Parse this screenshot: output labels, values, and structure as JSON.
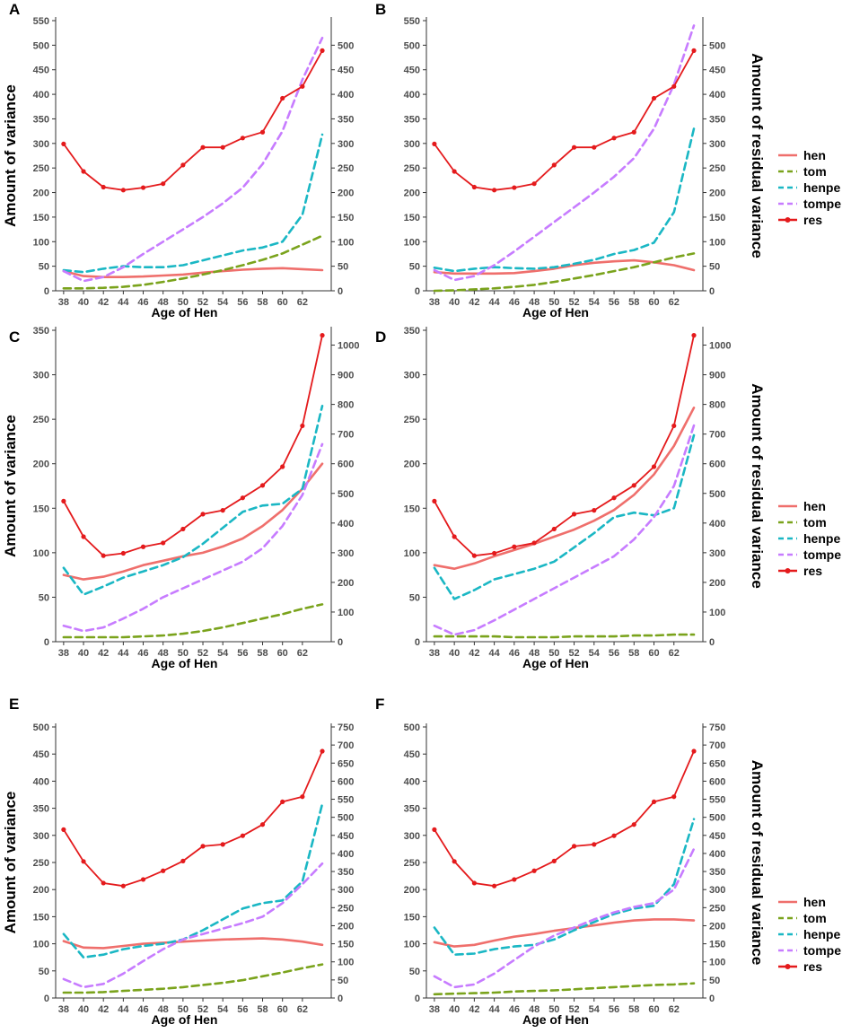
{
  "figure": {
    "xlabel": "Age of Hen",
    "ylabel_left": "Amount of variance",
    "ylabel_right": "Amount of residual variance",
    "x_ticks": [
      38,
      40,
      42,
      44,
      46,
      48,
      50,
      52,
      54,
      56,
      58,
      60,
      62
    ]
  },
  "legend": {
    "entries": [
      {
        "name": "hen",
        "color": "#ef6f6c",
        "dash": "solid",
        "marker": false
      },
      {
        "name": "tom",
        "color": "#7aa31c",
        "dash": "dash",
        "marker": false
      },
      {
        "name": "henpe",
        "color": "#1ab7c4",
        "dash": "dash",
        "marker": false
      },
      {
        "name": "tompe",
        "color": "#c77cff",
        "dash": "dash",
        "marker": false
      },
      {
        "name": "res",
        "color": "#e41a1c",
        "dash": "solid",
        "marker": true
      }
    ]
  },
  "chart_data": [
    {
      "panel": "A",
      "type": "line",
      "title": "",
      "xlabel": "Age of Hen",
      "ylabel": "Amount of variance",
      "y2label": "",
      "xlim": [
        37.2,
        64.9
      ],
      "ylim": [
        0,
        550
      ],
      "y_ticks": [
        0,
        50,
        100,
        150,
        200,
        250,
        300,
        350,
        400,
        450,
        500,
        550
      ],
      "y2lim": [
        0,
        550
      ],
      "y2_ticks": [
        0,
        50,
        100,
        150,
        200,
        250,
        300,
        350,
        400,
        450,
        500
      ],
      "x": [
        38,
        40,
        42,
        44,
        46,
        48,
        50,
        52,
        54,
        56,
        58,
        60,
        62,
        64
      ],
      "series": [
        {
          "name": "hen",
          "axis": "left",
          "values": [
            40,
            30,
            28,
            28,
            29,
            31,
            33,
            37,
            40,
            43,
            45,
            46,
            44,
            42
          ]
        },
        {
          "name": "tom",
          "axis": "left",
          "values": [
            5,
            5,
            6,
            8,
            12,
            18,
            25,
            33,
            42,
            52,
            63,
            76,
            94,
            112
          ]
        },
        {
          "name": "henpe",
          "axis": "left",
          "values": [
            42,
            38,
            45,
            50,
            48,
            48,
            52,
            62,
            72,
            82,
            88,
            100,
            155,
            318
          ]
        },
        {
          "name": "tompe",
          "axis": "left",
          "values": [
            40,
            20,
            28,
            48,
            75,
            100,
            125,
            150,
            178,
            210,
            258,
            325,
            430,
            515
          ]
        },
        {
          "name": "res",
          "axis": "right",
          "values": [
            299,
            243,
            211,
            205,
            210,
            218,
            256,
            292,
            292,
            311,
            323,
            392,
            416,
            489
          ]
        }
      ]
    },
    {
      "panel": "B",
      "type": "line",
      "title": "",
      "xlabel": "Age of Hen",
      "ylabel": "",
      "y2label": "Amount of residual variance",
      "xlim": [
        37.2,
        64.9
      ],
      "ylim": [
        0,
        550
      ],
      "y_ticks": [
        0,
        50,
        100,
        150,
        200,
        250,
        300,
        350,
        400,
        450,
        500,
        550
      ],
      "y2lim": [
        0,
        550
      ],
      "y2_ticks": [
        0,
        50,
        100,
        150,
        200,
        250,
        300,
        350,
        400,
        450,
        500
      ],
      "x": [
        38,
        40,
        42,
        44,
        46,
        48,
        50,
        52,
        54,
        56,
        58,
        60,
        62,
        64
      ],
      "series": [
        {
          "name": "hen",
          "axis": "left",
          "values": [
            38,
            35,
            35,
            35,
            36,
            40,
            45,
            52,
            57,
            60,
            62,
            58,
            52,
            42
          ]
        },
        {
          "name": "tom",
          "axis": "left",
          "values": [
            0,
            1,
            3,
            5,
            8,
            12,
            18,
            25,
            32,
            40,
            48,
            58,
            68,
            76
          ]
        },
        {
          "name": "henpe",
          "axis": "left",
          "values": [
            47,
            40,
            45,
            48,
            46,
            45,
            48,
            55,
            63,
            75,
            83,
            98,
            160,
            330
          ]
        },
        {
          "name": "tompe",
          "axis": "left",
          "values": [
            42,
            22,
            30,
            52,
            80,
            110,
            140,
            170,
            200,
            232,
            270,
            330,
            420,
            540
          ]
        },
        {
          "name": "res",
          "axis": "right",
          "values": [
            299,
            243,
            211,
            205,
            210,
            218,
            256,
            292,
            292,
            311,
            323,
            392,
            416,
            489
          ]
        }
      ]
    },
    {
      "panel": "C",
      "type": "line",
      "title": "",
      "xlabel": "Age of Hen",
      "ylabel": "Amount of variance",
      "y2label": "",
      "xlim": [
        37.2,
        64.9
      ],
      "ylim": [
        0,
        350
      ],
      "y_ticks": [
        0,
        50,
        100,
        150,
        200,
        250,
        300,
        350
      ],
      "y2lim": [
        0,
        1050
      ],
      "y2_ticks": [
        0,
        100,
        200,
        300,
        400,
        500,
        600,
        700,
        800,
        900,
        1000
      ],
      "x": [
        38,
        40,
        42,
        44,
        46,
        48,
        50,
        52,
        54,
        56,
        58,
        60,
        62,
        64
      ],
      "series": [
        {
          "name": "hen",
          "axis": "left",
          "values": [
            75,
            70,
            73,
            79,
            86,
            91,
            96,
            100,
            107,
            116,
            130,
            148,
            172,
            200
          ]
        },
        {
          "name": "tom",
          "axis": "left",
          "values": [
            5,
            5,
            5,
            5,
            6,
            7,
            9,
            12,
            16,
            21,
            26,
            31,
            37,
            42
          ]
        },
        {
          "name": "henpe",
          "axis": "left",
          "values": [
            83,
            53,
            62,
            72,
            79,
            86,
            95,
            110,
            128,
            146,
            153,
            155,
            172,
            265
          ]
        },
        {
          "name": "tompe",
          "axis": "left",
          "values": [
            18,
            12,
            16,
            26,
            37,
            50,
            60,
            70,
            80,
            90,
            105,
            130,
            165,
            222
          ]
        },
        {
          "name": "res",
          "axis": "right",
          "values": [
            474,
            354,
            290,
            298,
            320,
            333,
            380,
            430,
            443,
            485,
            527,
            590,
            728,
            1033
          ]
        }
      ]
    },
    {
      "panel": "D",
      "type": "line",
      "title": "",
      "xlabel": "Age of Hen",
      "ylabel": "",
      "y2label": "Amount of residual variance",
      "xlim": [
        37.2,
        64.9
      ],
      "ylim": [
        0,
        350
      ],
      "y_ticks": [
        0,
        50,
        100,
        150,
        200,
        250,
        300,
        350
      ],
      "y2lim": [
        0,
        1050
      ],
      "y2_ticks": [
        0,
        100,
        200,
        300,
        400,
        500,
        600,
        700,
        800,
        900,
        1000
      ],
      "x": [
        38,
        40,
        42,
        44,
        46,
        48,
        50,
        52,
        54,
        56,
        58,
        60,
        62,
        64
      ],
      "series": [
        {
          "name": "hen",
          "axis": "left",
          "values": [
            86,
            82,
            88,
            96,
            103,
            110,
            118,
            126,
            136,
            148,
            165,
            188,
            220,
            263
          ]
        },
        {
          "name": "tom",
          "axis": "left",
          "values": [
            6,
            6,
            6,
            6,
            5,
            5,
            5,
            6,
            6,
            6,
            7,
            7,
            8,
            8
          ]
        },
        {
          "name": "henpe",
          "axis": "left",
          "values": [
            83,
            48,
            58,
            70,
            76,
            82,
            90,
            106,
            122,
            140,
            145,
            142,
            150,
            232
          ]
        },
        {
          "name": "tompe",
          "axis": "left",
          "values": [
            18,
            8,
            13,
            24,
            36,
            48,
            60,
            72,
            84,
            96,
            115,
            140,
            175,
            243
          ]
        },
        {
          "name": "res",
          "axis": "right",
          "values": [
            474,
            354,
            290,
            298,
            320,
            333,
            380,
            430,
            443,
            485,
            527,
            590,
            728,
            1033
          ]
        }
      ]
    },
    {
      "panel": "E",
      "type": "line",
      "title": "",
      "xlabel": "Age of Hen",
      "ylabel": "Amount of variance",
      "y2label": "",
      "xlim": [
        37.2,
        64.9
      ],
      "ylim": [
        0,
        500
      ],
      "y_ticks": [
        0,
        50,
        100,
        150,
        200,
        250,
        300,
        350,
        400,
        450,
        500
      ],
      "y2lim": [
        0,
        750
      ],
      "y2_ticks": [
        0,
        50,
        100,
        150,
        200,
        250,
        300,
        350,
        400,
        450,
        500,
        550,
        600,
        650,
        700,
        750
      ],
      "x": [
        38,
        40,
        42,
        44,
        46,
        48,
        50,
        52,
        54,
        56,
        58,
        60,
        62,
        64
      ],
      "series": [
        {
          "name": "hen",
          "axis": "left",
          "values": [
            105,
            93,
            92,
            96,
            100,
            102,
            104,
            106,
            108,
            109,
            110,
            108,
            104,
            98
          ]
        },
        {
          "name": "tom",
          "axis": "left",
          "values": [
            10,
            10,
            11,
            13,
            15,
            17,
            20,
            24,
            28,
            33,
            40,
            47,
            55,
            62
          ]
        },
        {
          "name": "henpe",
          "axis": "left",
          "values": [
            118,
            75,
            80,
            90,
            96,
            100,
            108,
            125,
            145,
            165,
            175,
            180,
            215,
            358
          ]
        },
        {
          "name": "tompe",
          "axis": "left",
          "values": [
            35,
            20,
            26,
            45,
            68,
            90,
            108,
            118,
            128,
            138,
            150,
            175,
            210,
            248
          ]
        },
        {
          "name": "res",
          "axis": "right",
          "values": [
            466,
            378,
            318,
            310,
            328,
            352,
            379,
            420,
            425,
            449,
            480,
            543,
            557,
            683
          ]
        }
      ]
    },
    {
      "panel": "F",
      "type": "line",
      "title": "",
      "xlabel": "Age of Hen",
      "ylabel": "",
      "y2label": "Amount of residual variance",
      "xlim": [
        37.2,
        64.9
      ],
      "ylim": [
        0,
        500
      ],
      "y_ticks": [
        0,
        50,
        100,
        150,
        200,
        250,
        300,
        350,
        400,
        450,
        500
      ],
      "y2lim": [
        0,
        750
      ],
      "y2_ticks": [
        0,
        50,
        100,
        150,
        200,
        250,
        300,
        350,
        400,
        450,
        500,
        550,
        600,
        650,
        700,
        750
      ],
      "x": [
        38,
        40,
        42,
        44,
        46,
        48,
        50,
        52,
        54,
        56,
        58,
        60,
        62,
        64
      ],
      "series": [
        {
          "name": "hen",
          "axis": "left",
          "values": [
            103,
            95,
            98,
            106,
            113,
            118,
            124,
            129,
            134,
            139,
            143,
            145,
            145,
            143
          ]
        },
        {
          "name": "tom",
          "axis": "left",
          "values": [
            7,
            8,
            9,
            10,
            12,
            13,
            14,
            16,
            18,
            20,
            22,
            24,
            25,
            27
          ]
        },
        {
          "name": "henpe",
          "axis": "left",
          "values": [
            130,
            80,
            82,
            90,
            95,
            98,
            108,
            125,
            140,
            155,
            165,
            170,
            210,
            330
          ]
        },
        {
          "name": "tompe",
          "axis": "left",
          "values": [
            40,
            20,
            25,
            45,
            70,
            95,
            115,
            130,
            145,
            158,
            168,
            175,
            200,
            275
          ]
        },
        {
          "name": "res",
          "axis": "right",
          "values": [
            466,
            378,
            318,
            310,
            328,
            352,
            379,
            420,
            425,
            449,
            480,
            543,
            557,
            683
          ]
        }
      ]
    }
  ]
}
